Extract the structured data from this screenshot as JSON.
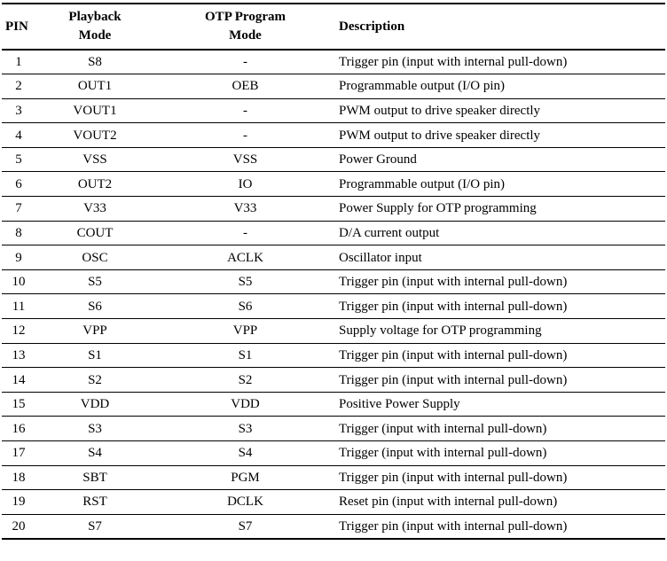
{
  "headers": {
    "pin": "PIN",
    "playback_line1": "Playback",
    "playback_line2": "Mode",
    "otp_line1": "OTP Program",
    "otp_line2": "Mode",
    "description": "Description"
  },
  "rows": [
    {
      "pin": "1",
      "playback": "S8",
      "otp": "-",
      "description": "Trigger pin (input with internal pull-down)"
    },
    {
      "pin": "2",
      "playback": "OUT1",
      "otp": "OEB",
      "description": "Programmable output (I/O pin)"
    },
    {
      "pin": "3",
      "playback": "VOUT1",
      "otp": "-",
      "description": "PWM output to drive speaker directly"
    },
    {
      "pin": "4",
      "playback": "VOUT2",
      "otp": "-",
      "description": "PWM output to drive speaker directly"
    },
    {
      "pin": "5",
      "playback": "VSS",
      "otp": "VSS",
      "description": "Power Ground"
    },
    {
      "pin": "6",
      "playback": "OUT2",
      "otp": "IO",
      "description": "Programmable output (I/O pin)"
    },
    {
      "pin": "7",
      "playback": "V33",
      "otp": "V33",
      "description": "Power Supply for OTP programming"
    },
    {
      "pin": "8",
      "playback": "COUT",
      "otp": "-",
      "description": "D/A current output"
    },
    {
      "pin": "9",
      "playback": "OSC",
      "otp": "ACLK",
      "description": "Oscillator input"
    },
    {
      "pin": "10",
      "playback": "S5",
      "otp": "S5",
      "description": "Trigger pin (input with internal pull-down)"
    },
    {
      "pin": "11",
      "playback": "S6",
      "otp": "S6",
      "description": "Trigger pin (input with internal pull-down)"
    },
    {
      "pin": "12",
      "playback": "VPP",
      "otp": "VPP",
      "description": "Supply voltage for OTP programming"
    },
    {
      "pin": "13",
      "playback": "S1",
      "otp": "S1",
      "description": "Trigger pin (input with internal pull-down)"
    },
    {
      "pin": "14",
      "playback": "S2",
      "otp": "S2",
      "description": "Trigger pin (input with internal pull-down)"
    },
    {
      "pin": "15",
      "playback": "VDD",
      "otp": "VDD",
      "description": "Positive Power Supply"
    },
    {
      "pin": "16",
      "playback": "S3",
      "otp": "S3",
      "description": "Trigger (input with internal pull-down)"
    },
    {
      "pin": "17",
      "playback": "S4",
      "otp": "S4",
      "description": "Trigger (input with internal pull-down)"
    },
    {
      "pin": "18",
      "playback": "SBT",
      "otp": "PGM",
      "description": "Trigger pin (input with internal pull-down)"
    },
    {
      "pin": "19",
      "playback": "RST",
      "otp": "DCLK",
      "description": "Reset pin (input with internal pull-down)"
    },
    {
      "pin": "20",
      "playback": "S7",
      "otp": "S7",
      "description": "Trigger pin (input with internal pull-down)"
    }
  ]
}
